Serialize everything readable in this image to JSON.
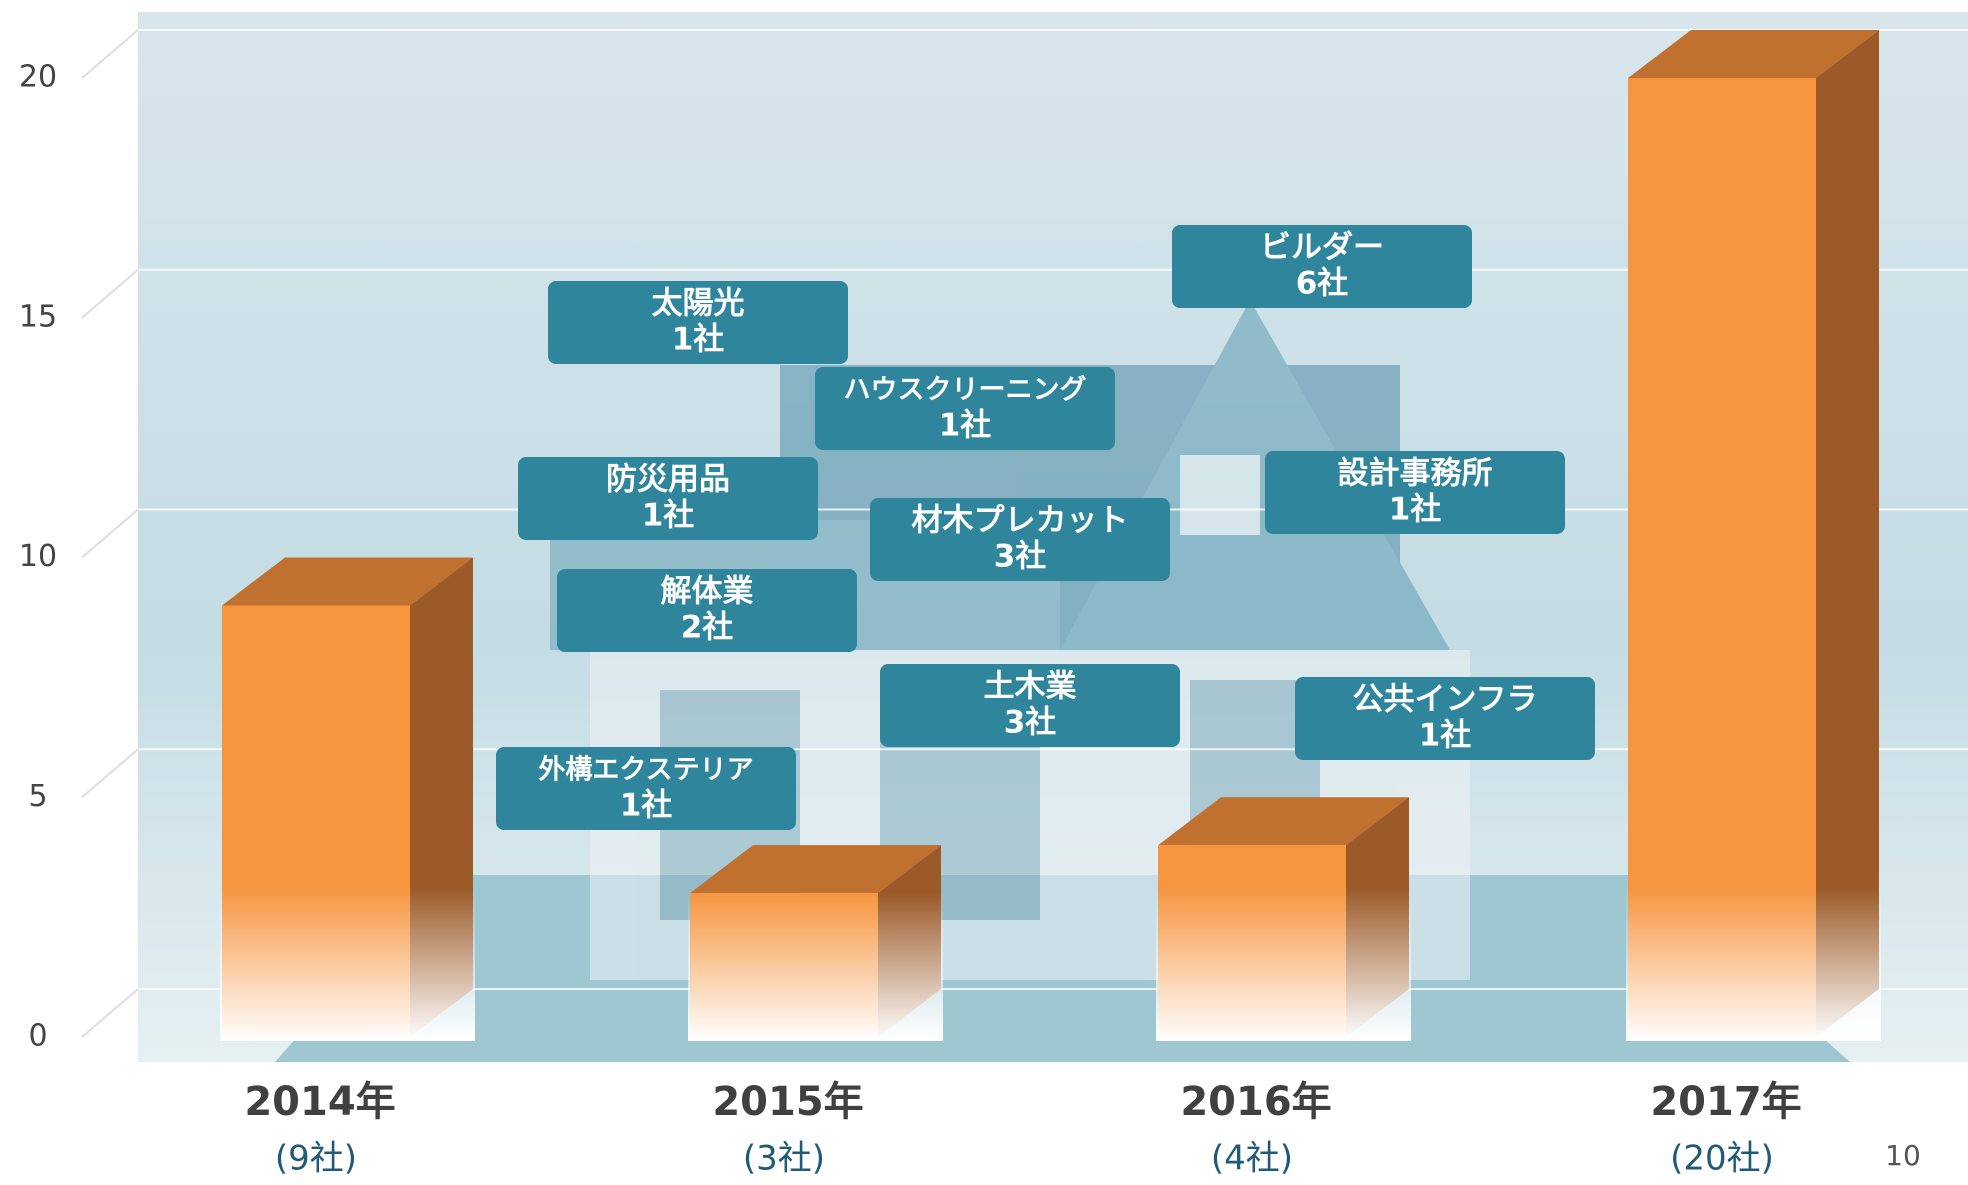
{
  "chart_data": {
    "type": "bar3d",
    "categories": [
      "2014年",
      "2015年",
      "2016年",
      "2017年"
    ],
    "sublabels": [
      "(9社)",
      "(3社)",
      "(4社)",
      "(20社)"
    ],
    "values": [
      9,
      3,
      4,
      20
    ],
    "color": "#f7953f",
    "ylim": [
      0,
      20
    ],
    "yticks": [
      0,
      5,
      10,
      15,
      20
    ],
    "grid": true,
    "annotations": [
      {
        "text": "太陽光",
        "count": "1社"
      },
      {
        "text": "ハウスクリーニング",
        "count": "1社"
      },
      {
        "text": "防災用品",
        "count": "1社"
      },
      {
        "text": "材木プレカット",
        "count": "3社"
      },
      {
        "text": "解体業",
        "count": "2社"
      },
      {
        "text": "外構エクステリア",
        "count": "1社"
      },
      {
        "text": "土木業",
        "count": "3社"
      },
      {
        "text": "ビルダー",
        "count": "6社"
      },
      {
        "text": "設計事務所",
        "count": "1社"
      },
      {
        "text": "公共インフラ",
        "count": "1社"
      }
    ]
  },
  "page_number": "10"
}
